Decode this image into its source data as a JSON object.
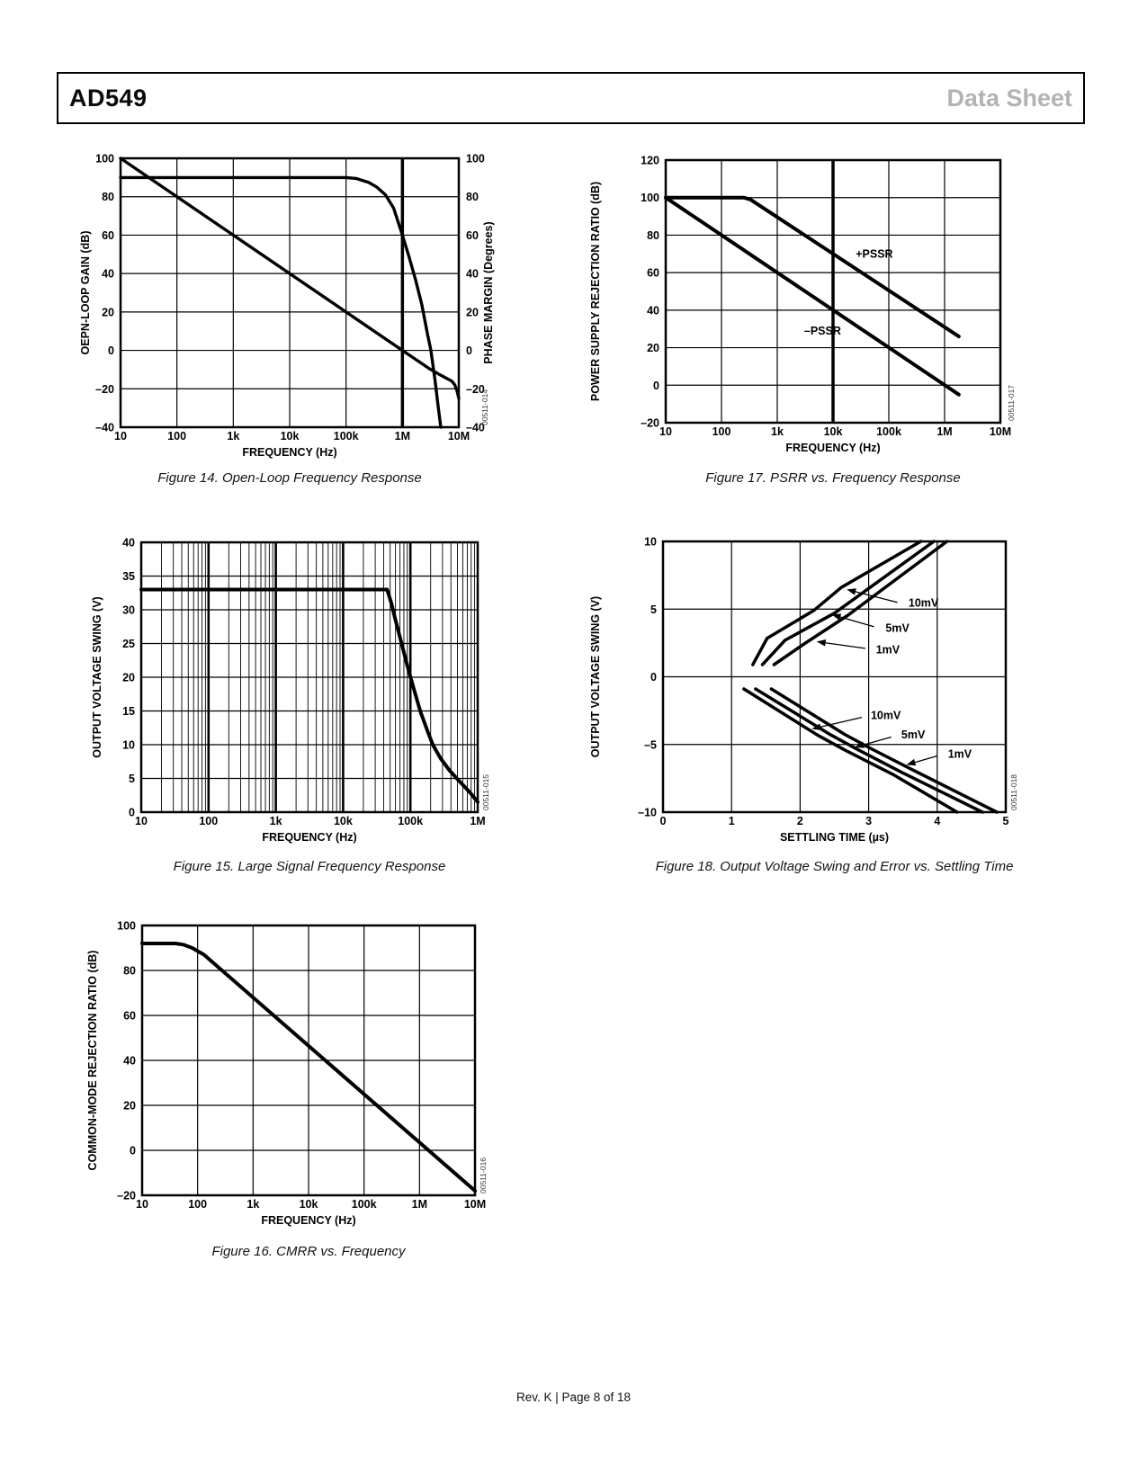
{
  "page": {
    "header": {
      "title": "AD549",
      "doc_type": "Data Sheet"
    },
    "footer": {
      "text": "Rev. K | Page 8 of 18"
    }
  },
  "chart_data": [
    {
      "id": "00511-014",
      "caption": "Figure 14. Open-Loop Frequency Response",
      "type": "line",
      "xscale": "log",
      "xlim": [
        10,
        10000000
      ],
      "ylim": [
        -40,
        100
      ],
      "xlabel": "FREQUENCY (Hz)",
      "ylabel": "OEPN-LOOP GAIN (dB)",
      "y2label": "PHASE MARGIN (Degrees)",
      "xtick_values": [
        10,
        100,
        1000,
        10000,
        100000,
        1000000,
        10000000
      ],
      "xtick_labels": [
        "10",
        "100",
        "1k",
        "10k",
        "100k",
        "1M",
        "10M"
      ],
      "ytick_values": [
        100,
        80,
        60,
        40,
        20,
        0,
        -20,
        -40
      ],
      "ytick_labels": [
        "100",
        "80",
        "60",
        "40",
        "20",
        "0",
        "–20",
        "–40"
      ],
      "y2tick_labels": [
        "100",
        "80",
        "60",
        "40",
        "20",
        "0",
        "–20",
        "–40"
      ],
      "thick_xgrid": [
        1000000
      ],
      "line_width": 3.4,
      "series": [
        {
          "name": "open-loop-gain",
          "points": [
            [
              10,
              100
            ],
            [
              1000000,
              0
            ],
            [
              2000000,
              -6
            ],
            [
              3000000,
              -9.5
            ],
            [
              4500000,
              -12.5
            ],
            [
              6000000,
              -14.5
            ],
            [
              7500000,
              -16
            ],
            [
              8500000,
              -18
            ],
            [
              9300000,
              -21
            ],
            [
              10000000,
              -25
            ]
          ]
        },
        {
          "name": "phase-margin",
          "points": [
            [
              10,
              90
            ],
            [
              100000,
              90
            ],
            [
              150000,
              89.5
            ],
            [
              250000,
              87.5
            ],
            [
              350000,
              85
            ],
            [
              500000,
              81
            ],
            [
              700000,
              74
            ],
            [
              1000000,
              60
            ],
            [
              1300000,
              49
            ],
            [
              1700000,
              37
            ],
            [
              2200000,
              24
            ],
            [
              2800000,
              8
            ],
            [
              3200000,
              0
            ],
            [
              3800000,
              -16
            ],
            [
              4300000,
              -29
            ],
            [
              4800000,
              -40
            ]
          ]
        }
      ],
      "annotations": []
    },
    {
      "id": "00511-017",
      "caption": "Figure 17. PSRR vs. Frequency Response",
      "type": "line",
      "xscale": "log",
      "xlim": [
        10,
        10000000
      ],
      "ylim": [
        -20,
        120
      ],
      "xlabel": "FREQUENCY (Hz)",
      "ylabel": "POWER SUPPLY REJECTION RATIO (dB)",
      "xtick_values": [
        10,
        100,
        1000,
        10000,
        100000,
        1000000,
        10000000
      ],
      "xtick_labels": [
        "10",
        "100",
        "1k",
        "10k",
        "100k",
        "1M",
        "10M"
      ],
      "ytick_values": [
        120,
        100,
        80,
        60,
        40,
        20,
        0,
        -20
      ],
      "ytick_labels": [
        "120",
        "100",
        "80",
        "60",
        "40",
        "20",
        "0",
        "–20"
      ],
      "thick_xgrid": [
        10000
      ],
      "line_width": 4,
      "series": [
        {
          "name": "+PSSR",
          "points": [
            [
              10,
              100
            ],
            [
              250,
              100
            ],
            [
              330,
              99
            ],
            [
              1800000,
              26
            ]
          ]
        },
        {
          "name": "–PSSR",
          "points": [
            [
              10,
              100
            ],
            [
              1800000,
              -5
            ]
          ]
        }
      ],
      "annotations": [
        {
          "text": "+PSSR",
          "x": 55000,
          "y": 70
        },
        {
          "text": "–PSSR",
          "x": 6500,
          "y": 29
        }
      ]
    },
    {
      "id": "00511-015",
      "caption": "Figure 15. Large Signal Frequency Response",
      "type": "line",
      "xscale": "log",
      "minor_log_grid": true,
      "decade_grid_width": 2.6,
      "xlim": [
        10,
        1000000
      ],
      "ylim": [
        0,
        40
      ],
      "xlabel": "FREQUENCY (Hz)",
      "ylabel": "OUTPUT VOLTAGE SWING (V)",
      "xtick_values": [
        10,
        100,
        1000,
        10000,
        100000,
        1000000
      ],
      "xtick_labels": [
        "10",
        "100",
        "1k",
        "10k",
        "100k",
        "1M"
      ],
      "ytick_values": [
        40,
        35,
        30,
        25,
        20,
        15,
        10,
        5,
        0
      ],
      "ytick_labels": [
        "40",
        "35",
        "30",
        "25",
        "20",
        "15",
        "10",
        "5",
        "0"
      ],
      "line_width": 4,
      "series": [
        {
          "name": "output-swing",
          "points": [
            [
              10,
              33
            ],
            [
              45000,
              33
            ],
            [
              52000,
              31
            ],
            [
              60000,
              28.5
            ],
            [
              74000,
              25
            ],
            [
              90000,
              21.7
            ],
            [
              110000,
              18.6
            ],
            [
              140000,
              15
            ],
            [
              180000,
              12
            ],
            [
              215000,
              10
            ],
            [
              280000,
              8
            ],
            [
              380000,
              6.2
            ],
            [
              500000,
              4.9
            ],
            [
              650000,
              3.7
            ],
            [
              800000,
              2.7
            ],
            [
              1000000,
              1.5
            ]
          ]
        }
      ],
      "annotations": []
    },
    {
      "id": "00511-018",
      "caption": "Figure 18. Output Voltage Swing and Error vs. Settling Time",
      "type": "line",
      "xscale": "linear",
      "xlim": [
        0,
        5
      ],
      "ylim": [
        -10,
        10
      ],
      "xlabel": "SETTLING TIME (µs)",
      "ylabel": "OUTPUT VOLTAGE SWING (V)",
      "xtick_values": [
        0,
        1,
        2,
        3,
        4,
        5
      ],
      "xtick_labels": [
        "0",
        "1",
        "2",
        "3",
        "4",
        "5"
      ],
      "ytick_values": [
        10,
        5,
        0,
        -5,
        -10
      ],
      "ytick_labels": [
        "10",
        "5",
        "0",
        "–5",
        "–10"
      ],
      "line_width": 3.5,
      "series": [
        {
          "name": "pos-10mV",
          "points": [
            [
              1.31,
              0.9
            ],
            [
              1.52,
              2.85
            ],
            [
              2.2,
              4.9
            ],
            [
              2.6,
              6.6
            ],
            [
              3.76,
              10
            ]
          ]
        },
        {
          "name": "pos-5mV",
          "points": [
            [
              1.45,
              0.9
            ],
            [
              1.78,
              2.7
            ],
            [
              2.5,
              4.7
            ],
            [
              3.95,
              10
            ]
          ]
        },
        {
          "name": "pos-1mV",
          "points": [
            [
              1.62,
              0.9
            ],
            [
              2.05,
              2.4
            ],
            [
              2.7,
              4.55
            ],
            [
              4.14,
              10
            ]
          ]
        },
        {
          "name": "neg-10mV",
          "points": [
            [
              1.18,
              -0.9
            ],
            [
              2.25,
              -4.3
            ],
            [
              2.65,
              -5.4
            ],
            [
              3.35,
              -7.2
            ],
            [
              4.29,
              -10
            ]
          ]
        },
        {
          "name": "neg-5mV",
          "points": [
            [
              1.35,
              -0.9
            ],
            [
              2.45,
              -4.3
            ],
            [
              2.85,
              -5.4
            ],
            [
              3.5,
              -7.1
            ],
            [
              4.66,
              -10
            ]
          ]
        },
        {
          "name": "neg-1mV",
          "points": [
            [
              1.58,
              -0.9
            ],
            [
              2.65,
              -4.25
            ],
            [
              3.05,
              -5.35
            ],
            [
              3.65,
              -6.9
            ],
            [
              4.87,
              -10
            ]
          ]
        }
      ],
      "annotations": [
        {
          "text": "10mV",
          "x": 3.8,
          "y": 5.45,
          "arrow": [
            [
              3.42,
              5.5
            ],
            [
              2.68,
              6.45
            ]
          ]
        },
        {
          "text": "5mV",
          "x": 3.42,
          "y": 3.6,
          "arrow": [
            [
              3.08,
              3.7
            ],
            [
              2.46,
              4.6
            ]
          ]
        },
        {
          "text": "1mV",
          "x": 3.28,
          "y": 2.0,
          "arrow": [
            [
              2.95,
              2.1
            ],
            [
              2.24,
              2.6
            ]
          ]
        },
        {
          "text": "10mV",
          "x": 3.25,
          "y": -2.85,
          "arrow": [
            [
              2.9,
              -3.0
            ],
            [
              2.17,
              -3.85
            ]
          ]
        },
        {
          "text": "5mV",
          "x": 3.65,
          "y": -4.3,
          "arrow": [
            [
              3.33,
              -4.45
            ],
            [
              2.8,
              -5.2
            ]
          ]
        },
        {
          "text": "1mV",
          "x": 4.33,
          "y": -5.7,
          "arrow": [
            [
              4.0,
              -5.85
            ],
            [
              3.55,
              -6.5
            ]
          ]
        }
      ]
    },
    {
      "id": "00511-016",
      "caption": "Figure 16. CMRR vs. Frequency",
      "type": "line",
      "xscale": "log",
      "xlim": [
        10,
        10000000
      ],
      "ylim": [
        -20,
        100
      ],
      "xlabel": "FREQUENCY (Hz)",
      "ylabel": "COMMON-MODE REJECTION RATIO (dB)",
      "xtick_values": [
        10,
        100,
        1000,
        10000,
        100000,
        1000000,
        10000000
      ],
      "xtick_labels": [
        "10",
        "100",
        "1k",
        "10k",
        "100k",
        "1M",
        "10M"
      ],
      "ytick_values": [
        100,
        80,
        60,
        40,
        20,
        0,
        -20
      ],
      "ytick_labels": [
        "100",
        "80",
        "60",
        "40",
        "20",
        "0",
        "–20"
      ],
      "line_width": 4,
      "series": [
        {
          "name": "cmrr",
          "points": [
            [
              10,
              92
            ],
            [
              40,
              92
            ],
            [
              55,
              91.5
            ],
            [
              80,
              90
            ],
            [
              130,
              87
            ],
            [
              10000000,
              -18
            ]
          ]
        }
      ],
      "annotations": []
    }
  ]
}
